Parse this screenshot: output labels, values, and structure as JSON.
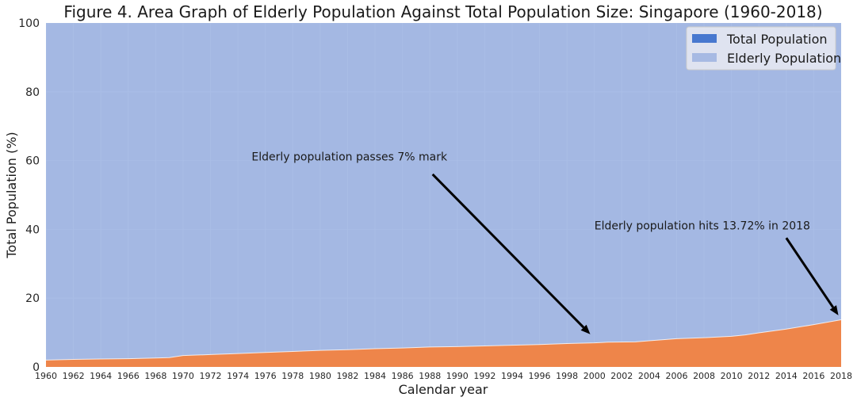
{
  "chart_data": {
    "type": "area",
    "title": "Figure 4. Area Graph of Elderly Population Against Total Population Size: Singapore (1960-2018)",
    "xlabel": "Calendar year",
    "ylabel": "Total Population (%)",
    "xlim": [
      1960,
      2018
    ],
    "ylim": [
      0,
      100
    ],
    "yticks": [
      0,
      20,
      40,
      60,
      80,
      100
    ],
    "xticks": [
      1960,
      1962,
      1964,
      1966,
      1968,
      1970,
      1972,
      1974,
      1976,
      1978,
      1980,
      1982,
      1984,
      1986,
      1988,
      1990,
      1992,
      1994,
      1996,
      1998,
      2000,
      2002,
      2004,
      2006,
      2008,
      2010,
      2012,
      2014,
      2016,
      2018
    ],
    "grid": true,
    "legend_position": "top-right",
    "series": [
      {
        "name": "Total Population",
        "color": "#4878cf",
        "x": [
          1960,
          2018
        ],
        "values": [
          100,
          100
        ]
      },
      {
        "name": "Elderly Population",
        "color": "#a7bae3",
        "fill_color": "#ee854a",
        "x": [
          1960,
          1962,
          1964,
          1966,
          1968,
          1969,
          1970,
          1972,
          1974,
          1976,
          1978,
          1980,
          1982,
          1984,
          1986,
          1988,
          1990,
          1992,
          1994,
          1996,
          1998,
          2000,
          2001,
          2003,
          2004,
          2006,
          2008,
          2010,
          2011,
          2012,
          2014,
          2016,
          2018
        ],
        "values": [
          2.0,
          2.2,
          2.3,
          2.4,
          2.6,
          2.7,
          3.3,
          3.6,
          3.9,
          4.2,
          4.5,
          4.8,
          5.0,
          5.3,
          5.5,
          5.8,
          5.9,
          6.1,
          6.3,
          6.5,
          6.8,
          7.0,
          7.2,
          7.3,
          7.6,
          8.2,
          8.5,
          8.9,
          9.3,
          9.9,
          11.0,
          12.3,
          13.72
        ]
      }
    ],
    "annotations": [
      {
        "text": "Elderly population passes 7% mark",
        "text_x": 1975,
        "text_y": 60,
        "arrow_from": [
          1988.2,
          56
        ],
        "arrow_to": [
          1999.7,
          9.5
        ]
      },
      {
        "text": "Elderly population hits 13.72% in 2018",
        "text_x": 2000,
        "text_y": 40,
        "arrow_from": [
          2014,
          37.5
        ],
        "arrow_to": [
          2017.8,
          15
        ]
      }
    ]
  }
}
